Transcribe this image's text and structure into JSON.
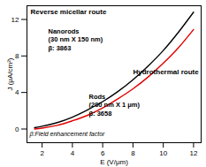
{
  "chart_data": {
    "type": "line",
    "x_label": "E (V/μm)",
    "y_label": "J (μA/cm²)",
    "x": [
      1.5,
      2,
      3,
      4,
      5,
      6,
      7,
      8,
      9,
      10,
      11,
      12
    ],
    "series": [
      {
        "name": "Nanorods",
        "color": "#000000",
        "line_style": "solid",
        "values": [
          0.15,
          0.3,
          0.7,
          1.3,
          2.1,
          3.0,
          4.1,
          5.4,
          6.9,
          8.6,
          10.6,
          12.8
        ]
      },
      {
        "name": "Rods",
        "color": "#e00000",
        "line_style": "solid",
        "values": [
          0.0,
          0.1,
          0.4,
          0.9,
          1.5,
          2.3,
          3.3,
          4.4,
          5.7,
          7.2,
          8.9,
          10.9
        ]
      }
    ],
    "xlim": [
      1,
      12.5
    ],
    "xticks": [
      2,
      4,
      6,
      8,
      10,
      12
    ],
    "ylim": [
      -1.5,
      13.5
    ],
    "yticks": [
      0,
      4,
      8,
      12
    ],
    "annotations": [
      "Reverse micellar route",
      "Nanorods",
      "(30 nm X 150 nm)",
      "β: 3863",
      "Hydrothermal route",
      "Rods",
      "(200 nm X 1 μm)",
      "β: 3658",
      "β:Field enhancement factor"
    ]
  }
}
